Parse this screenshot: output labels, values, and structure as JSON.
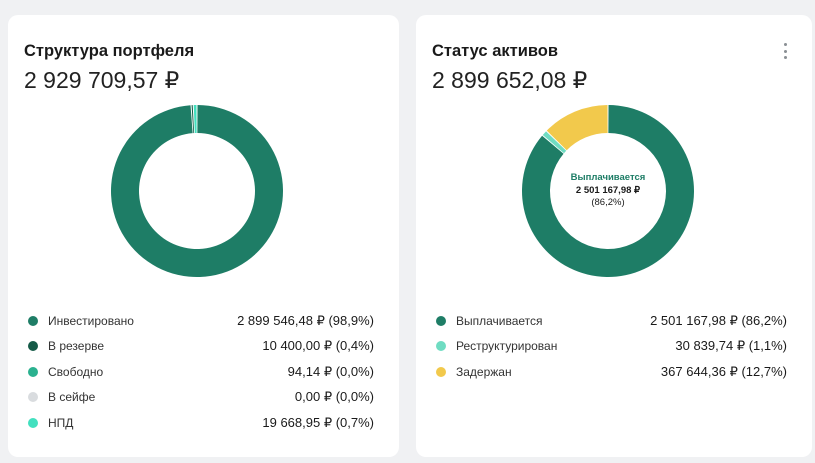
{
  "portfolio": {
    "title": "Структура портфеля",
    "total": "2 929 709,57 ₽",
    "chart_data": {
      "type": "pie",
      "title": "Структура портфеля",
      "categories": [
        "Инвестировано",
        "В резерве",
        "Свободно",
        "В сейфе",
        "НПД"
      ],
      "values": [
        98.9,
        0.4,
        0.0,
        0.0,
        0.7
      ],
      "colors": [
        "#1e7d66",
        "#155a47",
        "#2ab18f",
        "#d9dcdf",
        "#42e0bf"
      ]
    },
    "legend": [
      {
        "label": "Инвестировано",
        "value": "2 899 546,48 ₽ (98,9%)"
      },
      {
        "label": "В резерве",
        "value": "10 400,00 ₽ (0,4%)"
      },
      {
        "label": "Свободно",
        "value": "94,14 ₽ (0,0%)"
      },
      {
        "label": "В сейфе",
        "value": "0,00 ₽ (0,0%)"
      },
      {
        "label": "НПД",
        "value": "19 668,95 ₽ (0,7%)"
      }
    ]
  },
  "assets": {
    "title": "Статус активов",
    "total": "2 899 652,08 ₽",
    "menu_icon": "more-vertical-icon",
    "center": {
      "name": "Выплачивается",
      "value": "2 501 167,98 ₽",
      "percent": "(86,2%)"
    },
    "chart_data": {
      "type": "pie",
      "title": "Статус активов",
      "categories": [
        "Выплачивается",
        "Реструктурирован",
        "Задержан"
      ],
      "values": [
        86.2,
        1.1,
        12.7
      ],
      "colors": [
        "#1e7d66",
        "#6fdcc2",
        "#f2c94c"
      ]
    },
    "legend": [
      {
        "label": "Выплачивается",
        "value": "2 501 167,98 ₽ (86,2%)"
      },
      {
        "label": "Реструктурирован",
        "value": "30 839,74 ₽ (1,1%)"
      },
      {
        "label": "Задержан",
        "value": "367 644,36 ₽ (12,7%)"
      }
    ]
  }
}
